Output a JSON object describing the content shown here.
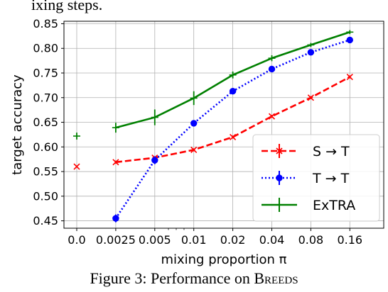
{
  "clipped_text": "ixing steps.",
  "caption": {
    "prefix": "Figure 3: Performance on ",
    "name": "Breeds"
  },
  "chart_data": {
    "type": "line",
    "xlabel": "mixing proportion π",
    "ylabel": "target accuracy",
    "categories": [
      "0.0",
      "0.0025",
      "0.005",
      "0.01",
      "0.02",
      "0.04",
      "0.08",
      "0.16"
    ],
    "yticks": [
      "0.45",
      "0.50",
      "0.55",
      "0.60",
      "0.65",
      "0.70",
      "0.75",
      "0.80",
      "0.85"
    ],
    "ylim": [
      0.435,
      0.855
    ],
    "grid": true,
    "legend_position": "lower-right",
    "series": [
      {
        "name": "S → T",
        "color": "#ff0000",
        "style": "dashed",
        "marker": "x",
        "points": [
          {
            "x": "0.0",
            "y": 0.56,
            "err": 0.002
          },
          {
            "x": "0.0025",
            "y": 0.569,
            "err": 0.003
          },
          {
            "x": "0.005",
            "y": 0.578,
            "err": 0.003
          },
          {
            "x": "0.01",
            "y": 0.594,
            "err": 0.003
          },
          {
            "x": "0.02",
            "y": 0.62,
            "err": 0.003
          },
          {
            "x": "0.04",
            "y": 0.662,
            "err": 0.003
          },
          {
            "x": "0.08",
            "y": 0.7,
            "err": 0.003
          },
          {
            "x": "0.16",
            "y": 0.742,
            "err": 0.003
          }
        ],
        "connect_from": 1
      },
      {
        "name": "T → T",
        "color": "#0000ff",
        "style": "dotted",
        "marker": "o",
        "points": [
          {
            "x": "0.0025",
            "y": 0.455,
            "err": 0.008
          },
          {
            "x": "0.005",
            "y": 0.573,
            "err": 0.008
          },
          {
            "x": "0.01",
            "y": 0.648,
            "err": 0.003
          },
          {
            "x": "0.02",
            "y": 0.713,
            "err": 0.006
          },
          {
            "x": "0.04",
            "y": 0.758,
            "err": 0.004
          },
          {
            "x": "0.08",
            "y": 0.792,
            "err": 0.003
          },
          {
            "x": "0.16",
            "y": 0.817,
            "err": 0.004
          }
        ],
        "connect_from": 0
      },
      {
        "name": "ExTRA",
        "color": "#008000",
        "style": "solid",
        "marker": "none",
        "points": [
          {
            "x": "0.0",
            "y": 0.622,
            "err": 0.007
          },
          {
            "x": "0.0025",
            "y": 0.639,
            "err": 0.01
          },
          {
            "x": "0.005",
            "y": 0.66,
            "err": 0.016
          },
          {
            "x": "0.01",
            "y": 0.699,
            "err": 0.014
          },
          {
            "x": "0.02",
            "y": 0.746,
            "err": 0.007
          },
          {
            "x": "0.04",
            "y": 0.78,
            "err": 0.006
          },
          {
            "x": "0.08",
            "y": 0.807,
            "err": 0.004
          },
          {
            "x": "0.16",
            "y": 0.833,
            "err": 0.004
          }
        ],
        "connect_from": 1
      }
    ]
  }
}
